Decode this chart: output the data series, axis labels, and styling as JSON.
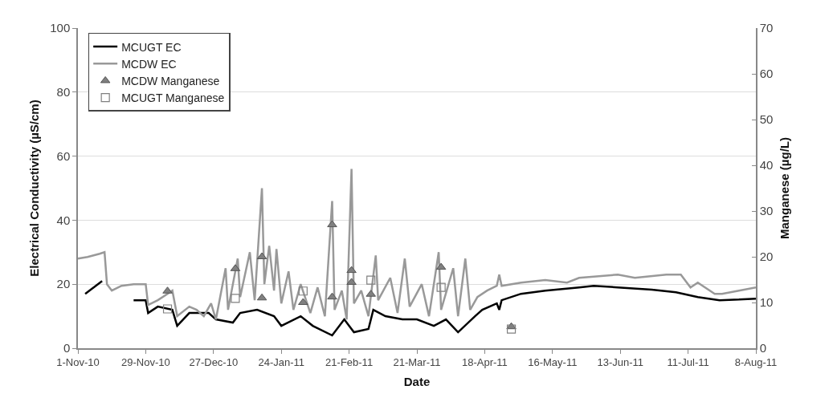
{
  "chart_data": {
    "type": "line",
    "xlabel": "Date",
    "ylabel": "Electrical Conductivity (µS/cm)",
    "y2label": "Manganese (µg/L)",
    "xlim": [
      "2010-11-01",
      "2011-08-08"
    ],
    "xticks": [
      {
        "value": "2010-11-01",
        "label": "1-Nov-10"
      },
      {
        "value": "2010-11-29",
        "label": "29-Nov-10"
      },
      {
        "value": "2010-12-27",
        "label": "27-Dec-10"
      },
      {
        "value": "2011-01-24",
        "label": "24-Jan-11"
      },
      {
        "value": "2011-02-21",
        "label": "21-Feb-11"
      },
      {
        "value": "2011-03-21",
        "label": "21-Mar-11"
      },
      {
        "value": "2011-04-18",
        "label": "18-Apr-11"
      },
      {
        "value": "2011-05-16",
        "label": "16-May-11"
      },
      {
        "value": "2011-06-13",
        "label": "13-Jun-11"
      },
      {
        "value": "2011-07-11",
        "label": "11-Jul-11"
      },
      {
        "value": "2011-08-08",
        "label": "8-Aug-11"
      }
    ],
    "ylim": [
      0,
      100
    ],
    "yticks": [
      0,
      20,
      40,
      60,
      80,
      100
    ],
    "y2lim": [
      0,
      70
    ],
    "y2ticks": [
      0,
      10,
      20,
      30,
      40,
      50,
      60,
      70
    ],
    "grid": "y",
    "legend": "top left",
    "line_style": "solid",
    "series": [
      {
        "name": "MCUGT EC",
        "color": "#000000",
        "marker": "none",
        "x": [
          "2010-11-04",
          "2010-11-11",
          "2010-11-17",
          "2010-11-24",
          "2010-11-29",
          "2010-11-30",
          "2010-12-04",
          "2010-12-10",
          "2010-12-12",
          "2010-12-17",
          "2010-12-25",
          "2010-12-28",
          "2011-01-04",
          "2011-01-07",
          "2011-01-14",
          "2011-01-21",
          "2011-01-24",
          "2011-02-01",
          "2011-02-06",
          "2011-02-14",
          "2011-02-19",
          "2011-02-23",
          "2011-03-01",
          "2011-03-03",
          "2011-03-08",
          "2011-03-15",
          "2011-03-21",
          "2011-03-28",
          "2011-04-02",
          "2011-04-07",
          "2011-04-14",
          "2011-04-17",
          "2011-04-23",
          "2011-04-24",
          "2011-04-25",
          "2011-05-03",
          "2011-05-13",
          "2011-05-27",
          "2011-06-02",
          "2011-06-12",
          "2011-06-26",
          "2011-07-06",
          "2011-07-15",
          "2011-07-24",
          "2011-08-01",
          "2011-08-08"
        ],
        "values": [
          17,
          21,
          null,
          15,
          15,
          11,
          13,
          12,
          7,
          11,
          11,
          9,
          8,
          11,
          12,
          10,
          7,
          10,
          7,
          4,
          9,
          5,
          6,
          12,
          10,
          9,
          9,
          7,
          9,
          5,
          10,
          12,
          14,
          12,
          15,
          17,
          18,
          19,
          19.5,
          19,
          18.3,
          17.5,
          16,
          15,
          15.2,
          15.5
        ]
      },
      {
        "name": "MCDW EC",
        "color": "#999999",
        "marker": "none",
        "x": [
          "2010-11-01",
          "2010-11-05",
          "2010-11-10",
          "2010-11-12",
          "2010-11-13",
          "2010-11-15",
          "2010-11-19",
          "2010-11-24",
          "2010-11-29",
          "2010-11-30",
          "2010-12-04",
          "2010-12-08",
          "2010-12-10",
          "2010-12-12",
          "2010-12-17",
          "2010-12-20",
          "2010-12-23",
          "2010-12-26",
          "2010-12-28",
          "2011-01-01",
          "2011-01-02",
          "2011-01-06",
          "2011-01-07",
          "2011-01-11",
          "2011-01-13",
          "2011-01-16",
          "2011-01-17",
          "2011-01-19",
          "2011-01-21",
          "2011-01-22",
          "2011-01-24",
          "2011-01-27",
          "2011-01-29",
          "2011-02-01",
          "2011-02-05",
          "2011-02-08",
          "2011-02-11",
          "2011-02-14",
          "2011-02-15",
          "2011-02-18",
          "2011-02-20",
          "2011-02-22",
          "2011-02-23",
          "2011-02-26",
          "2011-03-01",
          "2011-03-04",
          "2011-03-05",
          "2011-03-10",
          "2011-03-13",
          "2011-03-16",
          "2011-03-18",
          "2011-03-23",
          "2011-03-26",
          "2011-03-30",
          "2011-03-31",
          "2011-04-05",
          "2011-04-07",
          "2011-04-10",
          "2011-04-12",
          "2011-04-15",
          "2011-04-19",
          "2011-04-23",
          "2011-04-24",
          "2011-04-25",
          "2011-05-03",
          "2011-05-13",
          "2011-05-22",
          "2011-05-27",
          "2011-06-12",
          "2011-06-19",
          "2011-07-02",
          "2011-07-08",
          "2011-07-12",
          "2011-07-15",
          "2011-07-22",
          "2011-07-25",
          "2011-08-01",
          "2011-08-08"
        ],
        "values": [
          28,
          28.5,
          29.5,
          30,
          20,
          18,
          19.5,
          20,
          20,
          13.5,
          15,
          17,
          18,
          10,
          13,
          12,
          10,
          14,
          9,
          25,
          12,
          28,
          16,
          30,
          15,
          50,
          20,
          32,
          18,
          31,
          14,
          24,
          12,
          20,
          11,
          19,
          10,
          46,
          12,
          18,
          9,
          56,
          14,
          18,
          10,
          29,
          15,
          22,
          11,
          28,
          13,
          20,
          10,
          30,
          12,
          25,
          10,
          28,
          12,
          16,
          18,
          19.5,
          23,
          19.5,
          20.5,
          21.3,
          20.5,
          22,
          23,
          22,
          23,
          23,
          19,
          20.5,
          17,
          17,
          18,
          19
        ]
      },
      {
        "name": "MCDW Manganese",
        "type": "scatter",
        "axis": "y2",
        "color": "#808080",
        "marker": "triangle",
        "x": [
          "2010-12-08",
          "2011-01-05",
          "2011-01-16",
          "2011-01-16",
          "2011-02-02",
          "2011-02-14",
          "2011-02-14",
          "2011-02-22",
          "2011-02-22",
          "2011-03-02",
          "2011-03-31",
          "2011-04-29"
        ],
        "values": [
          12.5,
          17.4,
          20,
          11,
          10,
          27,
          11.2,
          17,
          14.4,
          11.8,
          17.7,
          4.7
        ]
      },
      {
        "name": "MCUGT Manganese",
        "type": "scatter",
        "axis": "y2",
        "color": "#808080",
        "marker": "square",
        "x": [
          "2010-12-08",
          "2011-01-05",
          "2011-02-02",
          "2011-03-02",
          "2011-03-31",
          "2011-04-29"
        ],
        "values": [
          8.6,
          10.9,
          12.5,
          14.9,
          13.3,
          4.2
        ]
      }
    ]
  }
}
